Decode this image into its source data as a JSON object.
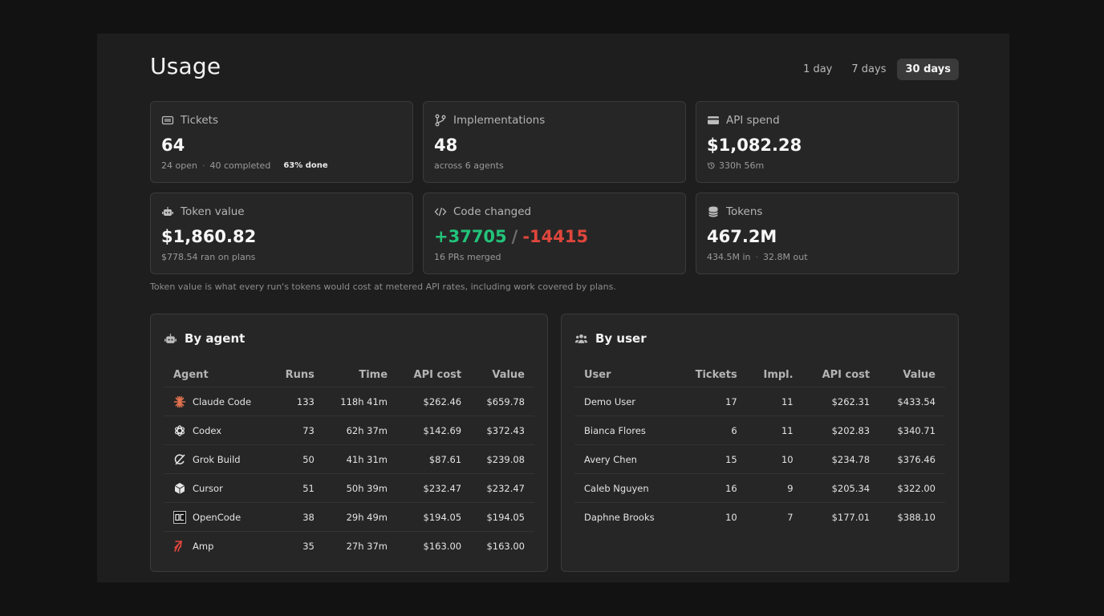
{
  "header": {
    "title": "Usage",
    "ranges": [
      "1 day",
      "7 days",
      "30 days"
    ],
    "active_range": "30 days"
  },
  "stats": {
    "tickets": {
      "label": "Tickets",
      "value": "64",
      "open": "24 open",
      "completed": "40 completed",
      "done": "63% done",
      "icon": "ticket-icon"
    },
    "implementations": {
      "label": "Implementations",
      "value": "48",
      "sub": "across 6 agents",
      "icon": "git-branch-icon"
    },
    "api_spend": {
      "label": "API spend",
      "value": "$1,082.28",
      "sub": "330h 56m",
      "icon": "credit-card-icon"
    },
    "token_value": {
      "label": "Token value",
      "value": "$1,860.82",
      "sub": "$778.54 ran on plans",
      "icon": "robot-icon"
    },
    "code_changed": {
      "label": "Code changed",
      "added": "+37705",
      "removed": "-14415",
      "sub": "16 PRs merged",
      "icon": "code-icon"
    },
    "tokens": {
      "label": "Tokens",
      "value": "467.2M",
      "in": "434.5M in",
      "out": "32.8M out",
      "icon": "database-icon"
    }
  },
  "footnote": "Token value is what every run's tokens would cost at metered API rates, including work covered by plans.",
  "by_agent": {
    "title": "By agent",
    "columns": [
      "Agent",
      "Runs",
      "Time",
      "API cost",
      "Value"
    ],
    "rows": [
      {
        "name": "Claude Code",
        "runs": "133",
        "time": "118h 41m",
        "api_cost": "$262.46",
        "value": "$659.78",
        "icon": "claude-icon",
        "color": "#e0714f"
      },
      {
        "name": "Codex",
        "runs": "73",
        "time": "62h 37m",
        "api_cost": "$142.69",
        "value": "$372.43",
        "icon": "openai-icon",
        "color": "#e6e6e6"
      },
      {
        "name": "Grok Build",
        "runs": "50",
        "time": "41h 31m",
        "api_cost": "$87.61",
        "value": "$239.08",
        "icon": "grok-icon",
        "color": "#e6e6e6"
      },
      {
        "name": "Cursor",
        "runs": "51",
        "time": "50h 39m",
        "api_cost": "$232.47",
        "value": "$232.47",
        "icon": "cursor-icon",
        "color": "#e6e6e6"
      },
      {
        "name": "OpenCode",
        "runs": "38",
        "time": "29h 49m",
        "api_cost": "$194.05",
        "value": "$194.05",
        "icon": "opencode-icon",
        "color": "#e6e6e6"
      },
      {
        "name": "Amp",
        "runs": "35",
        "time": "27h 37m",
        "api_cost": "$163.00",
        "value": "$163.00",
        "icon": "amp-icon",
        "color": "#e8473f"
      }
    ]
  },
  "by_user": {
    "title": "By user",
    "columns": [
      "User",
      "Tickets",
      "Impl.",
      "API cost",
      "Value"
    ],
    "rows": [
      {
        "name": "Demo User",
        "tickets": "17",
        "impl": "11",
        "api_cost": "$262.31",
        "value": "$433.54"
      },
      {
        "name": "Bianca Flores",
        "tickets": "6",
        "impl": "11",
        "api_cost": "$202.83",
        "value": "$340.71"
      },
      {
        "name": "Avery Chen",
        "tickets": "15",
        "impl": "10",
        "api_cost": "$234.78",
        "value": "$376.46"
      },
      {
        "name": "Caleb Nguyen",
        "tickets": "16",
        "impl": "9",
        "api_cost": "$205.34",
        "value": "$322.00"
      },
      {
        "name": "Daphne Brooks",
        "tickets": "10",
        "impl": "7",
        "api_cost": "$177.01",
        "value": "$388.10"
      }
    ]
  }
}
